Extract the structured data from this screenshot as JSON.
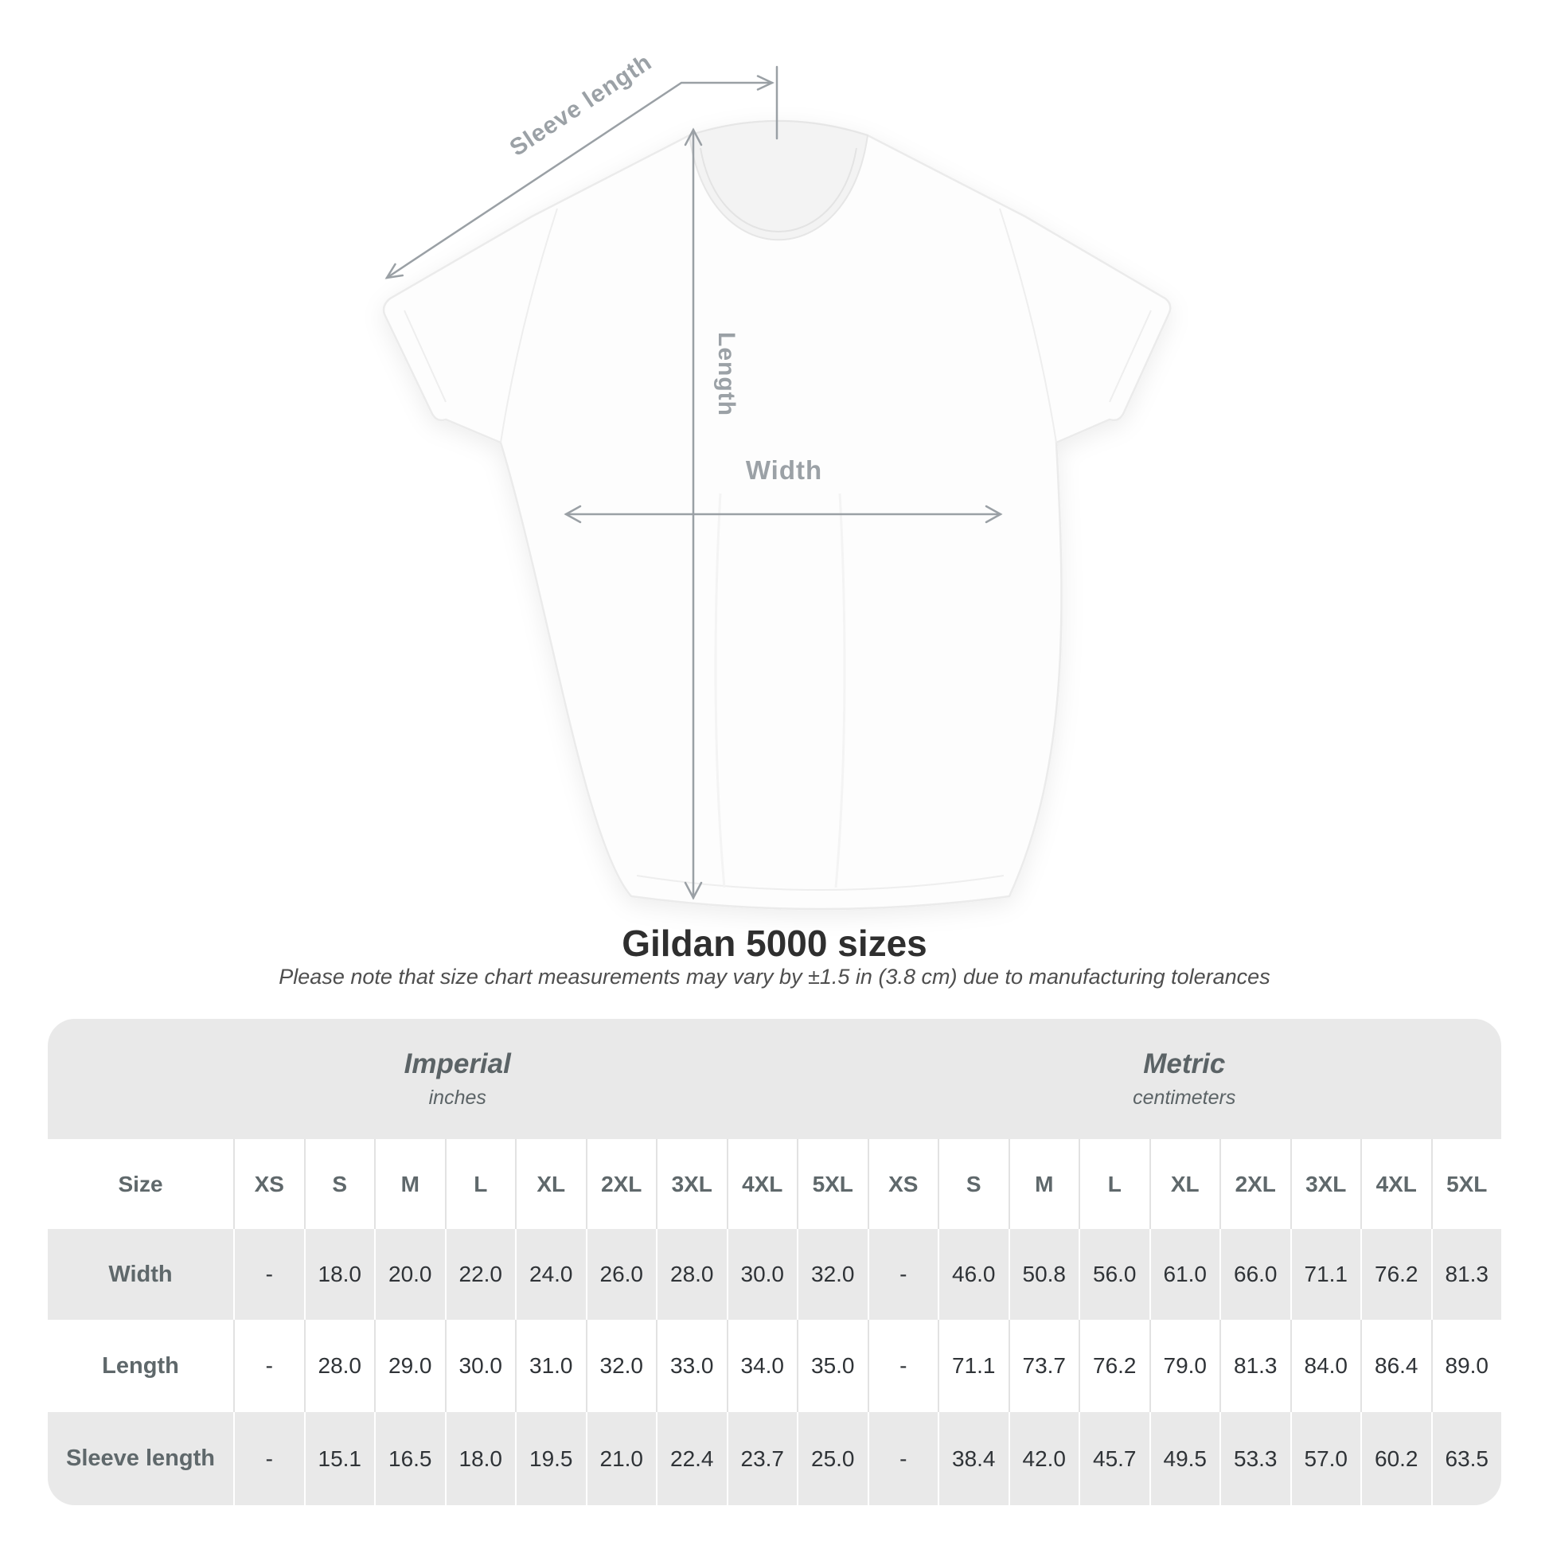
{
  "diagram": {
    "sleeve_label": "Sleeve length",
    "length_label": "Length",
    "width_label": "Width",
    "line_color": "#9aa0a5",
    "label_color": "#9ba1a6"
  },
  "heading": {
    "title": "Gildan 5000 sizes",
    "subtitle": "Please note that size chart measurements may vary by ±1.5 in (3.8 cm) due to manufacturing tolerances"
  },
  "table": {
    "background_gray": "#e9e9e9",
    "size_header": "Size",
    "groups": [
      {
        "label": "Imperial",
        "sublabel": "inches"
      },
      {
        "label": "Metric",
        "sublabel": "centimeters"
      }
    ],
    "sizes": [
      "XS",
      "S",
      "M",
      "L",
      "XL",
      "2XL",
      "3XL",
      "4XL",
      "5XL"
    ],
    "rows": [
      {
        "label": "Width",
        "imperial": [
          "-",
          "18.0",
          "20.0",
          "22.0",
          "24.0",
          "26.0",
          "28.0",
          "30.0",
          "32.0"
        ],
        "metric": [
          "-",
          "46.0",
          "50.8",
          "56.0",
          "61.0",
          "66.0",
          "71.1",
          "76.2",
          "81.3"
        ]
      },
      {
        "label": "Length",
        "imperial": [
          "-",
          "28.0",
          "29.0",
          "30.0",
          "31.0",
          "32.0",
          "33.0",
          "34.0",
          "35.0"
        ],
        "metric": [
          "-",
          "71.1",
          "73.7",
          "76.2",
          "79.0",
          "81.3",
          "84.0",
          "86.4",
          "89.0"
        ]
      },
      {
        "label": "Sleeve length",
        "imperial": [
          "-",
          "15.1",
          "16.5",
          "18.0",
          "19.5",
          "21.0",
          "22.4",
          "23.7",
          "25.0"
        ],
        "metric": [
          "-",
          "38.4",
          "42.0",
          "45.7",
          "49.5",
          "53.3",
          "57.0",
          "60.2",
          "63.5"
        ]
      }
    ]
  },
  "chart_data": {
    "type": "table",
    "title": "Gildan 5000 sizes",
    "note": "Measurements may vary by ±1.5 in (3.8 cm) due to manufacturing tolerances",
    "columns": [
      "Size",
      "XS",
      "S",
      "M",
      "L",
      "XL",
      "2XL",
      "3XL",
      "4XL",
      "5XL"
    ],
    "units": {
      "imperial": "inches",
      "metric": "centimeters"
    },
    "rows_imperial": [
      [
        "Width",
        null,
        18.0,
        20.0,
        22.0,
        24.0,
        26.0,
        28.0,
        30.0,
        32.0
      ],
      [
        "Length",
        null,
        28.0,
        29.0,
        30.0,
        31.0,
        32.0,
        33.0,
        34.0,
        35.0
      ],
      [
        "Sleeve length",
        null,
        15.1,
        16.5,
        18.0,
        19.5,
        21.0,
        22.4,
        23.7,
        25.0
      ]
    ],
    "rows_metric": [
      [
        "Width",
        null,
        46.0,
        50.8,
        56.0,
        61.0,
        66.0,
        71.1,
        76.2,
        81.3
      ],
      [
        "Length",
        null,
        71.1,
        73.7,
        76.2,
        79.0,
        81.3,
        84.0,
        86.4,
        89.0
      ],
      [
        "Sleeve length",
        null,
        38.4,
        42.0,
        45.7,
        49.5,
        53.3,
        57.0,
        60.2,
        63.5
      ]
    ]
  }
}
